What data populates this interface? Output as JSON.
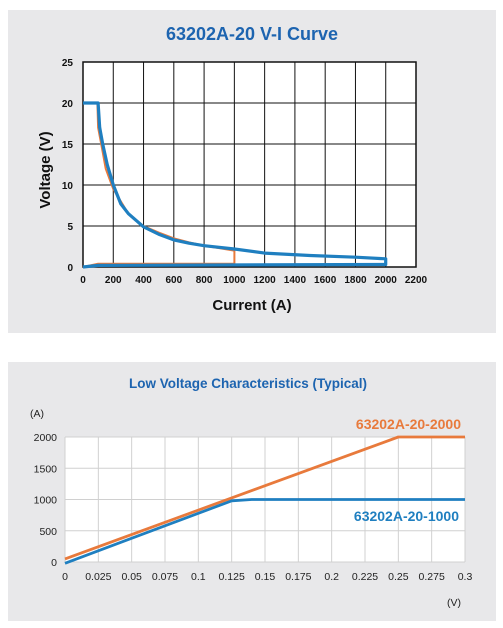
{
  "chart_data": [
    {
      "type": "line",
      "title": "63202A-20 V-I Curve",
      "xlabel": "Current (A)",
      "ylabel": "Voltage (V)",
      "xlim": [
        0,
        2200
      ],
      "ylim": [
        0,
        25
      ],
      "xticks": [
        0,
        200,
        400,
        600,
        800,
        1000,
        1200,
        1400,
        1600,
        1800,
        2000,
        2200
      ],
      "yticks": [
        0,
        5,
        10,
        15,
        20,
        25
      ],
      "grid": true,
      "series": [
        {
          "color": "#e87a3c",
          "points": [
            [
              0,
              0
            ],
            [
              100,
              0.4
            ],
            [
              1000,
              0.4
            ],
            [
              1000,
              2
            ],
            [
              900,
              2.3
            ],
            [
              800,
              2.6
            ],
            [
              700,
              3
            ],
            [
              600,
              3.5
            ],
            [
              500,
              4.2
            ],
            [
              400,
              5
            ],
            [
              300,
              6.5
            ],
            [
              200,
              9.5
            ],
            [
              150,
              12
            ],
            [
              120,
              15
            ],
            [
              100,
              17
            ],
            [
              95,
              20
            ],
            [
              0,
              20
            ]
          ]
        },
        {
          "color": "#1f7fc0",
          "points": [
            [
              0,
              0
            ],
            [
              100,
              0.2
            ],
            [
              2000,
              0.3
            ],
            [
              2000,
              1
            ],
            [
              1800,
              1.2
            ],
            [
              1500,
              1.4
            ],
            [
              1200,
              1.7
            ],
            [
              1000,
              2.2
            ],
            [
              800,
              2.6
            ],
            [
              700,
              2.9
            ],
            [
              600,
              3.3
            ],
            [
              500,
              4
            ],
            [
              400,
              4.9
            ],
            [
              300,
              6.5
            ],
            [
              250,
              7.7
            ],
            [
              200,
              10
            ],
            [
              160,
              12.5
            ],
            [
              130,
              15
            ],
            [
              110,
              17
            ],
            [
              100,
              20
            ],
            [
              0,
              20
            ]
          ]
        }
      ]
    },
    {
      "type": "line",
      "title": "Low Voltage Characteristics (Typical)",
      "xunit": "(V)",
      "yunit": "(A)",
      "xlim": [
        0,
        0.3
      ],
      "ylim": [
        0,
        2000
      ],
      "xticks": [
        "0",
        "0.025",
        "0.05",
        "0.075",
        "0.1",
        "0.125",
        "0.15",
        "0.175",
        "0.2",
        "0.225",
        "0.25",
        "0.275",
        "0.3"
      ],
      "yticks": [
        0,
        500,
        1000,
        1500,
        2000
      ],
      "grid": true,
      "series": [
        {
          "name": "63202A-20-2000",
          "color": "#e87a3c",
          "points": [
            [
              0,
              50
            ],
            [
              0.25,
              2000
            ],
            [
              0.3,
              2000
            ]
          ]
        },
        {
          "name": "63202A-20-1000",
          "color": "#1f7fc0",
          "points": [
            [
              0,
              -20
            ],
            [
              0.125,
              980
            ],
            [
              0.14,
              1000
            ],
            [
              0.3,
              1000
            ]
          ]
        }
      ]
    }
  ]
}
